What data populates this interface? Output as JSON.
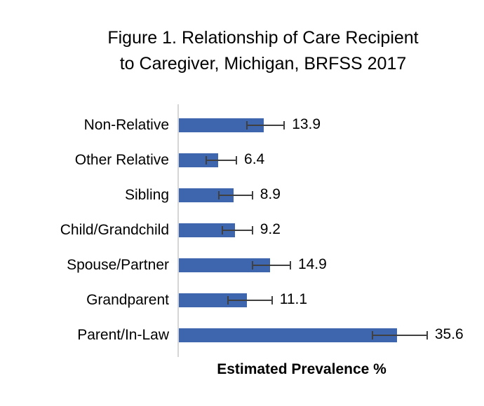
{
  "title": {
    "line1": "Figure 1. Relationship of Care Recipient",
    "line2": "to Caregiver, Michigan, BRFSS 2017"
  },
  "chart_data": {
    "type": "bar",
    "orientation": "horizontal",
    "title": "Figure 1. Relationship of Care Recipient to Caregiver, Michigan, BRFSS 2017",
    "xlabel": "Estimated Prevalence %",
    "ylabel": "",
    "categories": [
      "Non-Relative",
      "Other Relative",
      "Sibling",
      "Child/Grandchild",
      "Spouse/Partner",
      "Grandparent",
      "Parent/In-Law"
    ],
    "values": [
      13.9,
      6.4,
      8.9,
      9.2,
      14.9,
      11.1,
      35.6
    ],
    "value_labels": [
      "13.9",
      "6.4",
      "8.9",
      "9.2",
      "14.9",
      "11.1",
      "35.6"
    ],
    "error_low": [
      11.0,
      4.3,
      6.4,
      7.0,
      11.9,
      7.9,
      31.5
    ],
    "error_high": [
      17.3,
      9.5,
      12.1,
      12.1,
      18.3,
      15.3,
      40.6
    ],
    "xlim": [
      0,
      47
    ],
    "grid": false,
    "legend": false,
    "axis_ticks_shown": false,
    "colors": {
      "bar": "#3E66AF",
      "error_bar": "#404040",
      "axis_line": "#D6D6D6",
      "text": "#000000",
      "background": "#FFFFFF"
    }
  }
}
